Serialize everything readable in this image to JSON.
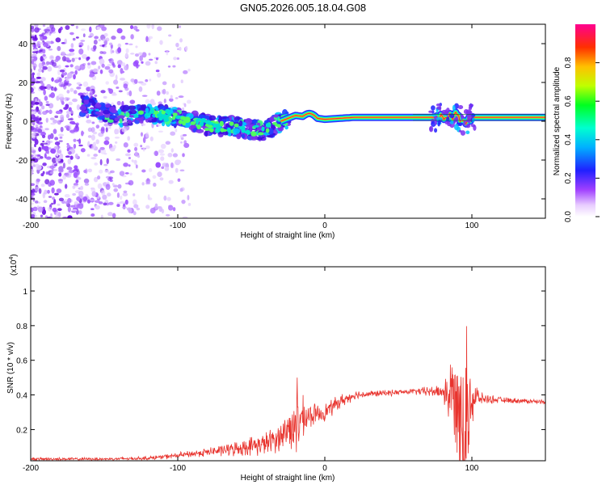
{
  "page_title": "GN05.2026.005.18.04.G08",
  "chart_data": [
    {
      "type": "heatmap",
      "title": "GN05.2026.005.18.04.G08",
      "xlabel": "Height of straight line (km)",
      "ylabel": "Frequency (Hz)",
      "xlim": [
        -200,
        150
      ],
      "ylim": [
        -50,
        50
      ],
      "x_ticks": [
        -200,
        -100,
        0,
        100
      ],
      "y_ticks": [
        -40,
        -20,
        0,
        20,
        40
      ],
      "colorbar": {
        "label": "Normalized spectral amplitude",
        "range": [
          0,
          1
        ],
        "ticks": [
          0.0,
          0.2,
          0.4,
          0.6,
          0.8
        ],
        "colors": [
          "#ffffff",
          "#d9b3ff",
          "#8000ff",
          "#0000ff",
          "#00e5ff",
          "#00ff40",
          "#ffff00",
          "#ff8000",
          "#ff0040",
          "#ff0080"
        ]
      },
      "ridge": {
        "x": [
          -160,
          -140,
          -120,
          -100,
          -80,
          -60,
          -40,
          -30,
          -20,
          -10,
          0,
          20,
          40,
          60,
          80,
          90,
          95,
          100,
          120,
          150
        ],
        "y": [
          8,
          2,
          4,
          2,
          -2,
          -3,
          -5,
          0,
          3,
          2,
          1,
          2,
          2,
          2,
          2,
          3,
          0,
          2,
          2,
          2
        ]
      },
      "noise_region_x": [
        -200,
        -100
      ]
    },
    {
      "type": "line",
      "xlabel": "Height of straight line (km)",
      "ylabel": "SNR (10 * v/v)",
      "y_multiplier": "(x10",
      "y_multiplier_exp": "4",
      "xlim": [
        -200,
        150
      ],
      "ylim": [
        0.02,
        1.14
      ],
      "x_ticks": [
        -200,
        -100,
        0,
        100
      ],
      "y_ticks": [
        0.2,
        0.4,
        0.6,
        0.8,
        1
      ],
      "color": "#e8342e",
      "envelope": {
        "x": [
          -200,
          -150,
          -120,
          -100,
          -80,
          -60,
          -40,
          -30,
          -25,
          -20,
          -10,
          0,
          10,
          20,
          40,
          60,
          80,
          85,
          90,
          95,
          100,
          105,
          120,
          150
        ],
        "base": [
          0.03,
          0.03,
          0.035,
          0.05,
          0.07,
          0.09,
          0.12,
          0.16,
          0.2,
          0.24,
          0.28,
          0.3,
          0.36,
          0.4,
          0.41,
          0.42,
          0.42,
          0.4,
          0.38,
          0.3,
          0.38,
          0.38,
          0.37,
          0.36
        ],
        "amp": [
          0.01,
          0.01,
          0.012,
          0.02,
          0.03,
          0.05,
          0.08,
          0.1,
          0.15,
          0.22,
          0.08,
          0.06,
          0.05,
          0.03,
          0.02,
          0.02,
          0.05,
          0.25,
          0.35,
          0.7,
          0.25,
          0.04,
          0.02,
          0.015
        ]
      }
    }
  ]
}
